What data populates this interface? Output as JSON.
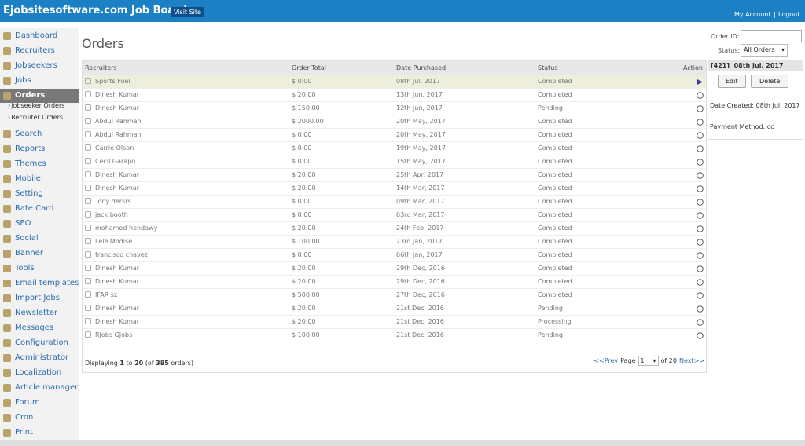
{
  "header": {
    "title": "Ejobsitesoftware.com Job Board",
    "visit_site": "Visit Site",
    "links": [
      "My Account",
      "Logout"
    ],
    "separator": "|"
  },
  "sidebar": {
    "items": [
      {
        "label": "Dashboard"
      },
      {
        "label": "Recruiters"
      },
      {
        "label": "Jobseekers"
      },
      {
        "label": "Jobs"
      },
      {
        "label": "Orders",
        "active": true,
        "children": [
          "jobseeker Orders",
          "Recruiter Orders"
        ]
      },
      {
        "label": "Search"
      },
      {
        "label": "Reports"
      },
      {
        "label": "Themes"
      },
      {
        "label": "Mobile"
      },
      {
        "label": "Setting"
      },
      {
        "label": "Rate Card"
      },
      {
        "label": "SEO"
      },
      {
        "label": "Social"
      },
      {
        "label": "Banner"
      },
      {
        "label": "Tools"
      },
      {
        "label": "Email templates"
      },
      {
        "label": "Import Jobs"
      },
      {
        "label": "Newsletter"
      },
      {
        "label": "Messages"
      },
      {
        "label": "Configuration"
      },
      {
        "label": "Administrator"
      },
      {
        "label": "Localization"
      },
      {
        "label": "Article manager"
      },
      {
        "label": "Forum"
      },
      {
        "label": "Cron"
      },
      {
        "label": "Print"
      }
    ]
  },
  "main": {
    "title": "Orders"
  },
  "table": {
    "columns": [
      "Recruiters",
      "Order Total",
      "Date Purchased",
      "Status",
      "Action"
    ],
    "rows": [
      {
        "cells": [
          "Sports Fuel",
          "$ 0.00",
          "08th Jul, 2017",
          "Completed"
        ],
        "selected": true
      },
      {
        "cells": [
          "Dinesh Kumar",
          "$ 20.00",
          "13th Jun, 2017",
          "Completed"
        ]
      },
      {
        "cells": [
          "Dinesh Kumar",
          "$ 150.00",
          "12th Jun, 2017",
          "Pending"
        ]
      },
      {
        "cells": [
          "Abdul Rahman",
          "$ 2000.00",
          "20th May, 2017",
          "Completed"
        ]
      },
      {
        "cells": [
          "Abdul Rahman",
          "$ 0.00",
          "20th May, 2017",
          "Completed"
        ]
      },
      {
        "cells": [
          "Carrie Olson",
          "$ 0.00",
          "19th May, 2017",
          "Completed"
        ]
      },
      {
        "cells": [
          "Cecil Garapo",
          "$ 0.00",
          "15th May, 2017",
          "Completed"
        ]
      },
      {
        "cells": [
          "Dinesh Kumar",
          "$ 20.00",
          "25th Apr, 2017",
          "Completed"
        ]
      },
      {
        "cells": [
          "Dinesh Kumar",
          "$ 20.00",
          "14th Mar, 2017",
          "Completed"
        ]
      },
      {
        "cells": [
          "Tony dersrs",
          "$ 0.00",
          "09th Mar, 2017",
          "Completed"
        ]
      },
      {
        "cells": [
          "jack booth",
          "$ 0.00",
          "03rd Mar, 2017",
          "Completed"
        ]
      },
      {
        "cells": [
          "mohamed hendawy",
          "$ 20.00",
          "24th Feb, 2017",
          "Completed"
        ]
      },
      {
        "cells": [
          "Lele Modise",
          "$ 100.00",
          "23rd Jan, 2017",
          "Completed"
        ]
      },
      {
        "cells": [
          "francisco chavez",
          "$ 0.00",
          "06th Jan, 2017",
          "Completed"
        ]
      },
      {
        "cells": [
          "Dinesh Kumar",
          "$ 20.00",
          "29th Dec, 2016",
          "Completed"
        ]
      },
      {
        "cells": [
          "Dinesh Kumar",
          "$ 20.00",
          "29th Dec, 2016",
          "Completed"
        ]
      },
      {
        "cells": [
          "IFAR sz",
          "$ 500.00",
          "27th Dec, 2016",
          "Completed"
        ]
      },
      {
        "cells": [
          "Dinesh Kumar",
          "$ 20.00",
          "21st Dec, 2016",
          "Pending"
        ]
      },
      {
        "cells": [
          "Dinesh Kumar",
          "$ 20.00",
          "21st Dec, 2016",
          "Processing"
        ]
      },
      {
        "cells": [
          "RJobs GJobs",
          "$ 100.00",
          "21st Dec, 2016",
          "Pending"
        ]
      }
    ]
  },
  "footer": {
    "display": [
      "Displaying ",
      "1",
      " to ",
      "20",
      " (of ",
      "385",
      " orders)"
    ],
    "prev": "<<Prev",
    "page": "Page",
    "page_value": "1",
    "of": "of 20",
    "next": "Next>>"
  },
  "panel": {
    "order_id_label": "Order ID:",
    "status_label": "Status:",
    "status_value": "All Orders",
    "header": "[421]  08th Jul, 2017",
    "edit": "Edit",
    "delete": "Delete",
    "date_created": "Date Created: 08th Jul, 2017",
    "payment_method": "Payment Method: cc"
  }
}
